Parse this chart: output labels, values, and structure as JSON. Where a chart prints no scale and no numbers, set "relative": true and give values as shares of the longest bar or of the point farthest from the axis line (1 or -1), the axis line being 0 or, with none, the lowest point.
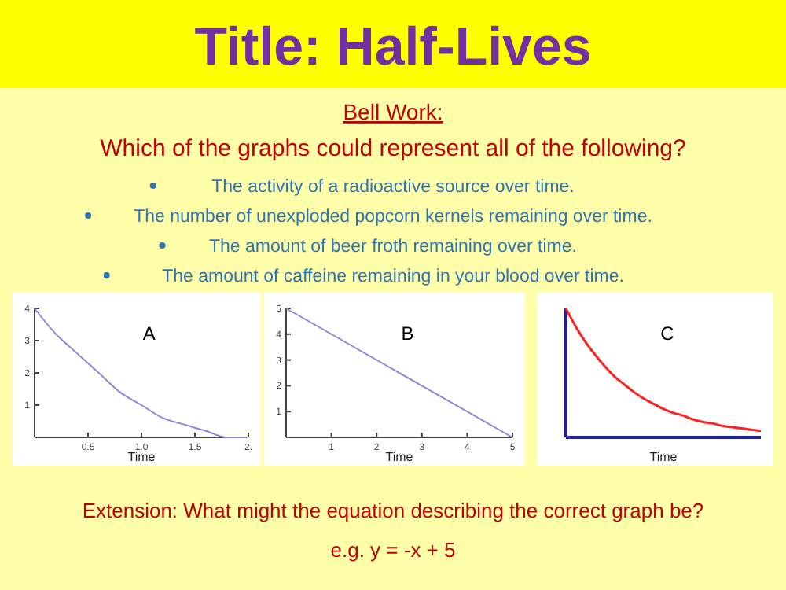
{
  "chart_data": [
    {
      "type": "other",
      "title": "Title: Half-Lives",
      "annotations": [
        "Bell Work:",
        "Which of the graphs could represent all of the following?",
        "The activity of a radioactive source over time.",
        "The number of unexploded popcorn kernels remaining over time.",
        "The amount of beer froth remaining over time.",
        "The amount of caffeine remaining in your blood over time."
      ]
    },
    {
      "type": "line",
      "xlabel": "Time",
      "annotations": [
        "A"
      ],
      "x": [
        0,
        0.2,
        0.4,
        0.6,
        0.8,
        1,
        1.2,
        1.4,
        1.6,
        1.8,
        2
      ],
      "series": [
        {
          "color": "#8a8ad8",
          "values": [
            4,
            3.2,
            2.6,
            2.0,
            1.4,
            1,
            0.6,
            0.4,
            0.2,
            0,
            0
          ]
        }
      ],
      "xlim": [
        0,
        2
      ],
      "ylim": [
        0,
        4
      ],
      "xticks": [
        0.5,
        {
          "value": 1,
          "label": "1.0"
        },
        1.5,
        {
          "value": 2,
          "label": "2."
        }
      ],
      "yticks": [
        1,
        2,
        3,
        4
      ]
    },
    {
      "type": "line",
      "xlabel": "Time",
      "annotations": [
        "B"
      ],
      "x": [
        0,
        5
      ],
      "series": [
        {
          "color": "#8a8ad8",
          "values": [
            5,
            0
          ]
        }
      ],
      "xlim": [
        0,
        5
      ],
      "ylim": [
        0,
        5
      ],
      "xticks": [
        1,
        2,
        3,
        4,
        5
      ],
      "yticks": [
        1,
        2,
        3,
        4,
        5
      ]
    },
    {
      "type": "line",
      "xlabel": "Time",
      "annotations": [
        "C"
      ],
      "relative": true,
      "categories": [
        null,
        null,
        null,
        null,
        null,
        null,
        null,
        null,
        null,
        null,
        null,
        null,
        null,
        null,
        null,
        null,
        null,
        null,
        null,
        null,
        null
      ],
      "series": [
        {
          "color": "#ff2020",
          "values": [
            1,
            0.86,
            0.74,
            0.64,
            0.55,
            0.47,
            0.41,
            0.35,
            0.3,
            0.26,
            0.22,
            0.19,
            0.17,
            0.14,
            0.12,
            0.11,
            0.09,
            0.08,
            0.07,
            0.06,
            0.05
          ]
        }
      ]
    },
    {
      "type": "other",
      "annotations": [
        "Extension: What might the equation describing the correct graph be?",
        "e.g. y = -x + 5"
      ]
    }
  ]
}
